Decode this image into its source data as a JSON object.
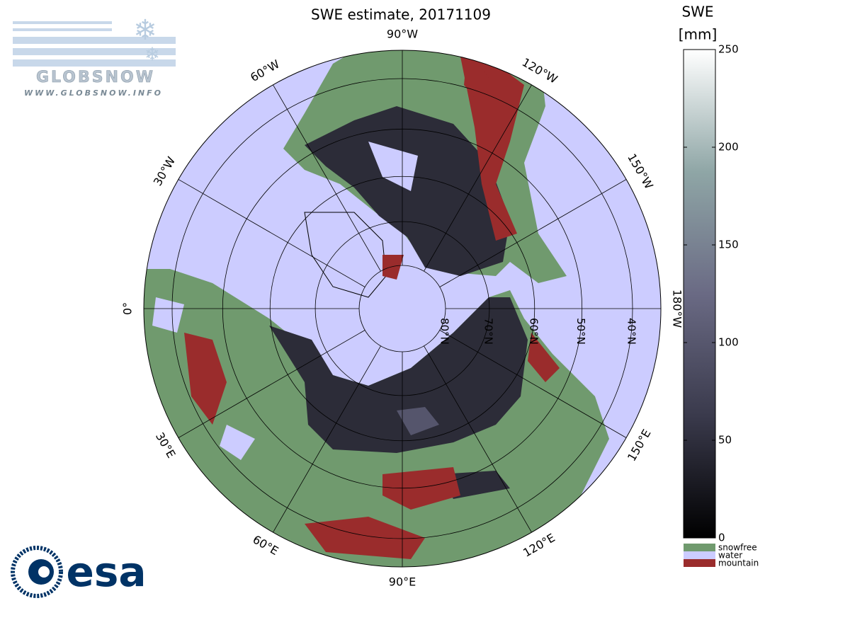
{
  "header": {
    "title": "SWE estimate, 20171109"
  },
  "map": {
    "type": "polar-stereographic",
    "meridians": [
      {
        "value": -90,
        "label": "90°W"
      },
      {
        "value": -120,
        "label": "120°W"
      },
      {
        "value": -150,
        "label": "150°W"
      },
      {
        "value": -180,
        "label": "180°W"
      },
      {
        "value": 150,
        "label": "150°E"
      },
      {
        "value": 120,
        "label": "120°E"
      },
      {
        "value": 90,
        "label": "90°E"
      },
      {
        "value": 60,
        "label": "60°E"
      },
      {
        "value": 30,
        "label": "30°E"
      },
      {
        "value": 0,
        "label": "0°"
      },
      {
        "value": -30,
        "label": "30°W"
      },
      {
        "value": -60,
        "label": "60°W"
      }
    ],
    "parallels": [
      {
        "value": 80,
        "label": "80°N"
      },
      {
        "value": 70,
        "label": "70°N"
      },
      {
        "value": 60,
        "label": "60°N"
      },
      {
        "value": 50,
        "label": "50°N"
      },
      {
        "value": 40,
        "label": "40°N"
      }
    ],
    "water_color": "#ccccff"
  },
  "colorbar": {
    "title": "SWE",
    "unit": "[mm]",
    "lim": [
      0,
      250
    ],
    "ticks": [
      0,
      50,
      100,
      150,
      200,
      250
    ],
    "colors": [
      "#000000",
      "#3a3a4c",
      "#6a6a84",
      "#8fa6a6",
      "#ffffff"
    ]
  },
  "legend": [
    {
      "label": "snowfree",
      "color": "#709a6e"
    },
    {
      "label": "water",
      "color": "#ccccff"
    },
    {
      "label": "mountain",
      "color": "#9a2c2c"
    }
  ],
  "logos": {
    "globsnow": "GLOBSNOW",
    "globsnow_url": "WWW.GLOBSNOW.INFO",
    "esa": "esa"
  }
}
